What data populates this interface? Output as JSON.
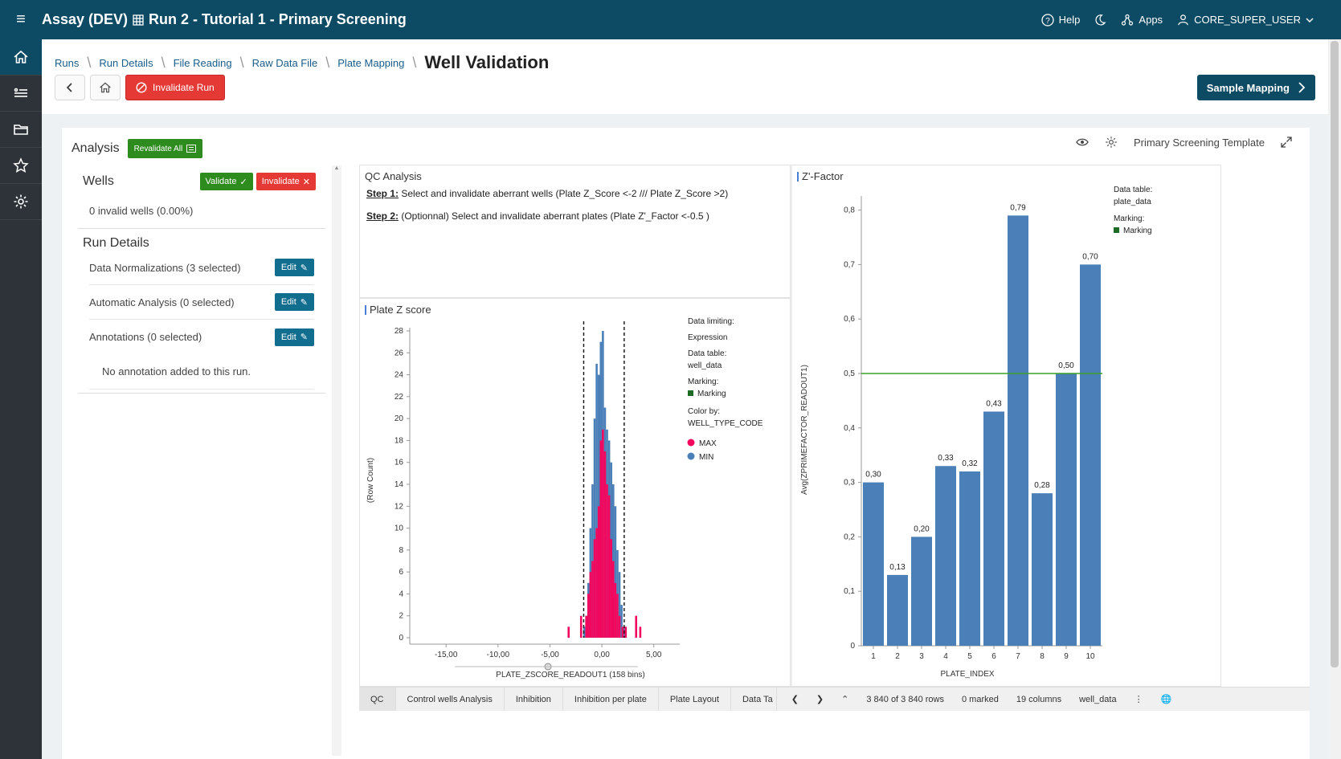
{
  "topbar": {
    "app_name": "Assay (DEV)",
    "grid_icon": "grid-icon",
    "run_title": "Run 2 - Tutorial 1 - Primary Screening",
    "help": "Help",
    "apps": "Apps",
    "user": "CORE_SUPER_USER"
  },
  "sidebar": {
    "items": [
      "home-icon",
      "list-icon",
      "folder-icon",
      "star-icon",
      "settings-icon"
    ]
  },
  "breadcrumb": {
    "items": [
      "Runs",
      "Run Details",
      "File Reading",
      "Raw Data File",
      "Plate Mapping"
    ],
    "current": "Well Validation"
  },
  "header": {
    "invalidate_run": "Invalidate Run",
    "sample_mapping": "Sample Mapping"
  },
  "analysis": {
    "title": "Analysis",
    "revalidate_all": "Revalidate All",
    "template": "Primary Screening Template"
  },
  "wells": {
    "title": "Wells",
    "validate": "Validate",
    "invalidate": "Invalidate",
    "invalid_count": "0 invalid wells (0.00%)"
  },
  "run_details": {
    "title": "Run Details",
    "rows": [
      {
        "label": "Data Normalizations (3 selected)",
        "button": "Edit"
      },
      {
        "label": "Automatic Analysis (0 selected)",
        "button": "Edit"
      },
      {
        "label": "Annotations (0 selected)",
        "button": "Edit"
      }
    ],
    "no_annotation": "No annotation added to this run."
  },
  "qc_panel": {
    "title": "QC Analysis",
    "step1_label": "Step 1:",
    "step1_text": " Select and invalidate aberrant wells (Plate Z_Score <-2 /// Plate Z_Score >2)",
    "step2_label": "Step 2:",
    "step2_text": " (Optionnal) Select and invalidate aberrant plates (Plate Z'_Factor <-0.5 )"
  },
  "zscore_panel": {
    "title": "Plate Z score",
    "legend": {
      "data_limiting": "Data limiting:",
      "expression": "Expression",
      "data_table_label": "Data table:",
      "data_table": "well_data",
      "marking_label": "Marking:",
      "marking": "Marking",
      "color_by_label": "Color by:",
      "color_by": "WELL_TYPE_CODE",
      "max": "MAX",
      "min": "MIN"
    }
  },
  "zfactor_panel": {
    "title": "Z'-Factor",
    "legend": {
      "data_table_label": "Data table:",
      "data_table": "plate_data",
      "marking_label": "Marking:",
      "marking": "Marking"
    }
  },
  "chart_data": [
    {
      "type": "bar",
      "title": "Plate Z score",
      "xlabel": "PLATE_ZSCORE_READOUT1 (158 bins)",
      "ylabel": "(Row Count)",
      "xlim": [
        -18.5,
        7.5
      ],
      "ylim": [
        0,
        28
      ],
      "x_ticks": [
        "-15,00",
        "-10,00",
        "-5,00",
        "0,00",
        "5,00"
      ],
      "x_tick_values": [
        -15,
        -10,
        -5,
        0,
        5
      ],
      "y_ticks": [
        "0",
        "2",
        "4",
        "6",
        "8",
        "10",
        "12",
        "14",
        "16",
        "18",
        "20",
        "22",
        "24",
        "26",
        "28"
      ],
      "y_tick_values": [
        0,
        2,
        4,
        6,
        8,
        10,
        12,
        14,
        16,
        18,
        20,
        22,
        24,
        26,
        28
      ],
      "threshold_lines_x": [
        -1.75,
        2.15
      ],
      "series": [
        {
          "name": "MIN",
          "color": "#4a7fb8",
          "bins": [
            [
              -1.7,
              1
            ],
            [
              -1.5,
              2
            ],
            [
              -1.3,
              5
            ],
            [
              -1.1,
              10
            ],
            [
              -0.9,
              14
            ],
            [
              -0.7,
              20
            ],
            [
              -0.5,
              25
            ],
            [
              -0.3,
              24
            ],
            [
              -0.1,
              27
            ],
            [
              0.1,
              28
            ],
            [
              0.3,
              21
            ],
            [
              0.5,
              19
            ],
            [
              0.7,
              18
            ],
            [
              0.9,
              16
            ],
            [
              1.1,
              14
            ],
            [
              1.3,
              12
            ],
            [
              1.5,
              8
            ],
            [
              1.7,
              6
            ],
            [
              1.9,
              3
            ],
            [
              2.1,
              1
            ]
          ]
        },
        {
          "name": "MAX",
          "color": "#f2075e",
          "bins": [
            [
              -3.2,
              1
            ],
            [
              -2.0,
              2
            ],
            [
              -1.5,
              2
            ],
            [
              -1.3,
              4
            ],
            [
              -1.1,
              6
            ],
            [
              -0.9,
              7
            ],
            [
              -0.7,
              9
            ],
            [
              -0.5,
              10
            ],
            [
              -0.3,
              12
            ],
            [
              -0.1,
              18
            ],
            [
              0.1,
              19
            ],
            [
              0.3,
              17
            ],
            [
              0.5,
              14
            ],
            [
              0.7,
              13
            ],
            [
              0.9,
              9
            ],
            [
              1.1,
              7
            ],
            [
              1.3,
              5
            ],
            [
              1.5,
              4
            ],
            [
              1.7,
              2
            ],
            [
              2.0,
              1
            ],
            [
              2.3,
              1
            ],
            [
              3.3,
              2
            ],
            [
              3.7,
              1
            ]
          ]
        }
      ]
    },
    {
      "type": "bar",
      "title": "Z'-Factor",
      "xlabel": "PLATE_INDEX",
      "ylabel": "Avg(ZPRIMEFACTOR_READOUT1)",
      "categories": [
        "1",
        "2",
        "3",
        "4",
        "5",
        "6",
        "7",
        "8",
        "9",
        "10"
      ],
      "values": [
        0.3,
        0.13,
        0.2,
        0.33,
        0.32,
        0.43,
        0.79,
        0.28,
        0.5,
        0.7
      ],
      "value_labels": [
        "0,30",
        "0,13",
        "0,20",
        "0,33",
        "0,32",
        "0,43",
        "0,79",
        "0,28",
        "0,50",
        "0,70"
      ],
      "ylim": [
        0,
        0.82
      ],
      "y_ticks": [
        "0",
        "0,1",
        "0,2",
        "0,3",
        "0,4",
        "0,5",
        "0,6",
        "0,7",
        "0,8"
      ],
      "y_tick_values": [
        0,
        0.1,
        0.2,
        0.3,
        0.4,
        0.5,
        0.6,
        0.7,
        0.8
      ],
      "reference_line": 0.5,
      "bar_color": "#4a7fb8",
      "line_color": "#3aa02a"
    }
  ],
  "bottom_tabs": {
    "tabs": [
      "QC",
      "Control wells Analysis",
      "Inhibition",
      "Inhibition per plate",
      "Plate Layout",
      "Data Ta"
    ],
    "rows": "3 840 of 3 840 rows",
    "marked": "0 marked",
    "columns": "19 columns",
    "table": "well_data"
  }
}
